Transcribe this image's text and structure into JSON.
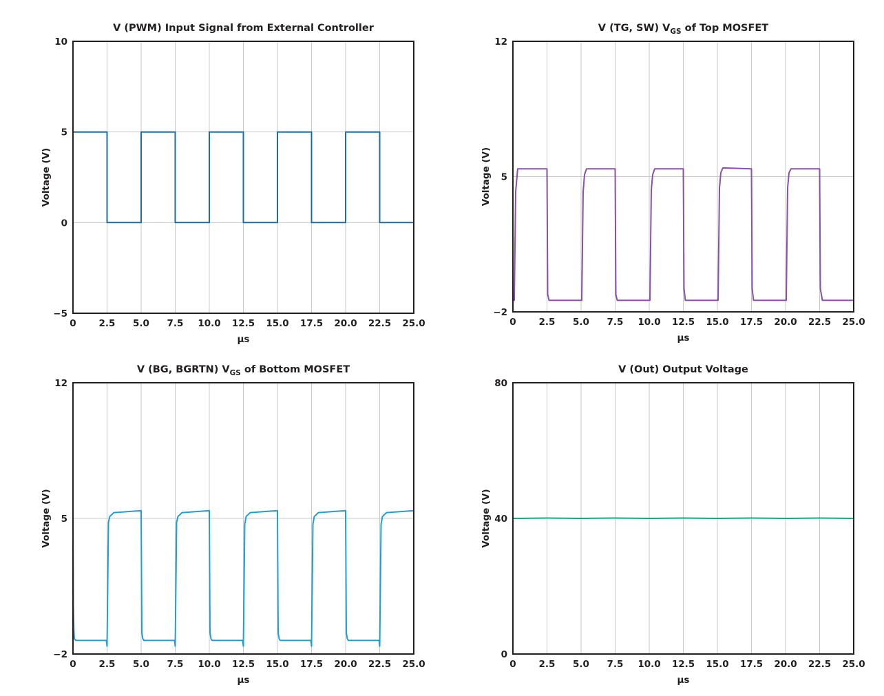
{
  "chart_data": [
    {
      "type": "line",
      "title": "V (PWM) Input Signal from External Controller",
      "xlabel": "µs",
      "ylabel": "Voltage (V)",
      "xlim": [
        0,
        25
      ],
      "ylim": [
        -5,
        10
      ],
      "xticks": [
        "0",
        "2.5",
        "5.0",
        "7.5",
        "10.0",
        "12.5",
        "15.0",
        "17.5",
        "20.0",
        "22.5",
        "25.0"
      ],
      "yticks": [
        "10",
        "5",
        "0",
        "−5"
      ],
      "grid": true,
      "series": [
        {
          "color": "#1a6fa8",
          "x": [
            0,
            0,
            2.5,
            2.5,
            5.0,
            5.0,
            7.5,
            7.5,
            10.0,
            10.0,
            12.5,
            12.5,
            15.0,
            15.0,
            17.5,
            17.5,
            20.0,
            20.0,
            22.5,
            22.5,
            25.0
          ],
          "y": [
            0,
            5,
            5,
            0,
            0,
            5,
            5,
            0,
            0,
            5,
            5,
            0,
            0,
            5,
            5,
            0,
            0,
            5,
            5,
            0,
            0
          ]
        }
      ]
    },
    {
      "type": "line",
      "title": "V (TG, SW) V",
      "title_sub": "GS",
      "title_tail": " of Top MOSFET",
      "xlabel": "µs",
      "ylabel": "Voltage (V)",
      "xlim": [
        0,
        25
      ],
      "ylim": [
        -2,
        12
      ],
      "xticks": [
        "0",
        "2.5",
        "5.0",
        "7.5",
        "10.0",
        "12.5",
        "15.0",
        "17.5",
        "20.0",
        "22.5",
        "25.0"
      ],
      "yticks": [
        "12",
        "5",
        "−2"
      ],
      "grid": true,
      "series": [
        {
          "color": "#8a4fa8",
          "x": [
            0,
            0.1,
            0.2,
            0.35,
            2.5,
            2.55,
            2.65,
            5.05,
            5.15,
            5.25,
            5.4,
            7.5,
            7.55,
            7.65,
            10.05,
            10.15,
            10.25,
            10.4,
            12.5,
            12.55,
            12.65,
            15.05,
            15.15,
            15.25,
            15.4,
            17.5,
            17.55,
            17.65,
            20.05,
            20.15,
            20.25,
            20.4,
            22.5,
            22.55,
            22.7,
            25.0
          ],
          "y": [
            -1.4,
            -1.4,
            4.2,
            5.4,
            5.4,
            -1.1,
            -1.4,
            -1.4,
            4.2,
            5.1,
            5.4,
            5.4,
            -1.1,
            -1.4,
            -1.4,
            4.3,
            5.1,
            5.4,
            5.4,
            -0.8,
            -1.4,
            -1.4,
            4.4,
            5.2,
            5.45,
            5.4,
            -0.8,
            -1.4,
            -1.4,
            4.4,
            5.2,
            5.4,
            5.4,
            -0.8,
            -1.4,
            -1.4
          ]
        }
      ]
    },
    {
      "type": "line",
      "title": "V (BG, BGRTN) V",
      "title_sub": "GS",
      "title_tail": " of Bottom MOSFET",
      "xlabel": "µs",
      "ylabel": "Voltage (V)",
      "xlim": [
        0,
        25
      ],
      "ylim": [
        -2,
        12
      ],
      "xticks": [
        "0",
        "2.5",
        "5.0",
        "7.5",
        "10.0",
        "12.5",
        "15.0",
        "17.5",
        "20.0",
        "22.5",
        "25.0"
      ],
      "yticks": [
        "12",
        "5",
        "−2"
      ],
      "grid": true,
      "series": [
        {
          "color": "#1f9ed4",
          "x": [
            0,
            0.03,
            0.07,
            0.1,
            0.2,
            2.45,
            2.5,
            2.6,
            2.7,
            3.0,
            5.0,
            5.05,
            5.12,
            5.2,
            7.45,
            7.5,
            7.6,
            7.7,
            8.0,
            10.0,
            10.05,
            10.12,
            10.2,
            12.45,
            12.5,
            12.6,
            12.7,
            13.0,
            15.0,
            15.05,
            15.12,
            15.2,
            17.45,
            17.5,
            17.6,
            17.7,
            18.0,
            20.0,
            20.05,
            20.12,
            20.2,
            22.45,
            22.5,
            22.6,
            22.7,
            23.0,
            25.0
          ],
          "y": [
            5.4,
            0.5,
            -0.8,
            -1.2,
            -1.3,
            -1.3,
            -1.6,
            4.8,
            5.1,
            5.3,
            5.4,
            -0.9,
            -1.2,
            -1.3,
            -1.3,
            -1.6,
            4.8,
            5.1,
            5.3,
            5.4,
            -0.9,
            -1.2,
            -1.3,
            -1.3,
            -1.6,
            4.7,
            5.1,
            5.3,
            5.4,
            -0.9,
            -1.2,
            -1.3,
            -1.3,
            -1.6,
            4.7,
            5.1,
            5.3,
            5.4,
            -0.9,
            -1.2,
            -1.3,
            -1.3,
            -1.6,
            4.7,
            5.1,
            5.3,
            5.4
          ]
        }
      ]
    },
    {
      "type": "line",
      "title": "V (Out) Output Voltage",
      "xlabel": "µs",
      "ylabel": "Voltage (V)",
      "xlim": [
        0,
        25
      ],
      "ylim": [
        0,
        80
      ],
      "xticks": [
        "0",
        "2.5",
        "5.0",
        "7.5",
        "10.0",
        "12.5",
        "15.0",
        "17.5",
        "20.0",
        "22.5",
        "25.0"
      ],
      "yticks": [
        "80",
        "40",
        "0"
      ],
      "grid": true,
      "series": [
        {
          "color": "#1fa37a",
          "x": [
            0,
            2.5,
            5.0,
            7.5,
            10.0,
            12.5,
            15.0,
            17.5,
            20.0,
            22.5,
            25.0
          ],
          "y": [
            40.0,
            40.1,
            40.0,
            40.1,
            40.0,
            40.1,
            40.0,
            40.1,
            40.0,
            40.1,
            40.0
          ]
        }
      ]
    }
  ]
}
